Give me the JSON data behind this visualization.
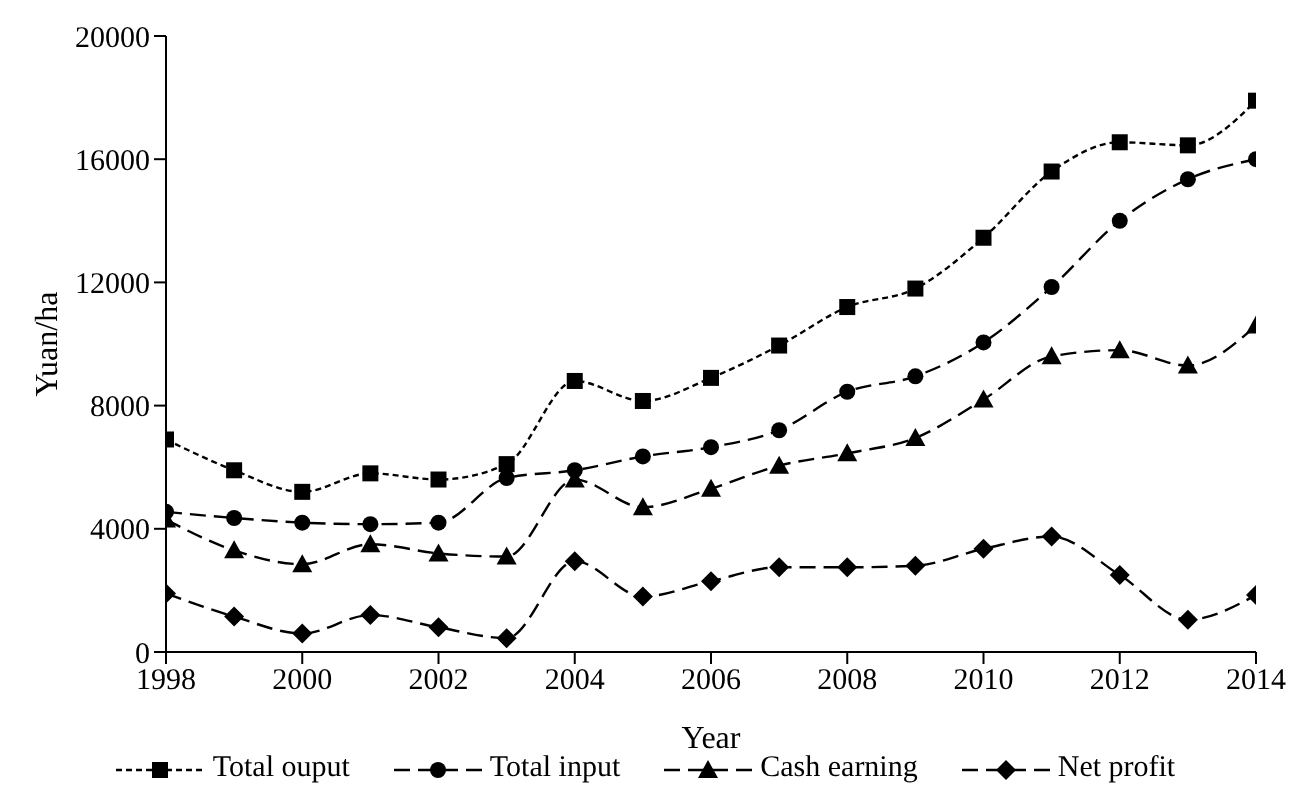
{
  "chart_data": {
    "type": "line",
    "xlabel": "Year",
    "ylabel": "Yuan/ha",
    "x": [
      1998,
      1999,
      2000,
      2001,
      2002,
      2003,
      2004,
      2005,
      2006,
      2007,
      2008,
      2009,
      2010,
      2011,
      2012,
      2013,
      2014
    ],
    "xlim": [
      1998,
      2014
    ],
    "xticks": [
      1998,
      2000,
      2002,
      2004,
      2006,
      2008,
      2010,
      2012,
      2014
    ],
    "ylim": [
      0,
      20000
    ],
    "yticks": [
      0,
      4000,
      8000,
      12000,
      16000,
      20000
    ],
    "grid": false,
    "legend": "bottom",
    "series": [
      {
        "name": "Total ouput",
        "color": "#000000",
        "marker": "square",
        "line_style": "dotted",
        "values": [
          6900,
          5900,
          5200,
          5800,
          5600,
          6100,
          8800,
          8150,
          8900,
          9950,
          11200,
          11800,
          13450,
          15600,
          16550,
          16450,
          17900
        ]
      },
      {
        "name": "Total input",
        "color": "#000000",
        "marker": "circle",
        "line_style": "dashed",
        "values": [
          4550,
          4350,
          4200,
          4150,
          4200,
          5650,
          5900,
          6350,
          6650,
          7200,
          8450,
          8950,
          10050,
          11850,
          14000,
          15350,
          16000
        ]
      },
      {
        "name": "Cash earning",
        "color": "#000000",
        "marker": "triangle",
        "line_style": "dashed",
        "values": [
          4300,
          3300,
          2850,
          3500,
          3200,
          3100,
          5600,
          4700,
          5300,
          6050,
          6450,
          6950,
          8200,
          9600,
          9800,
          9300,
          10600
        ]
      },
      {
        "name": "Net profit",
        "color": "#000000",
        "marker": "diamond",
        "line_style": "dashed",
        "values": [
          1900,
          1150,
          600,
          1200,
          800,
          450,
          2950,
          1800,
          2300,
          2750,
          2750,
          2800,
          3350,
          3750,
          2500,
          1050,
          1850
        ]
      }
    ]
  }
}
